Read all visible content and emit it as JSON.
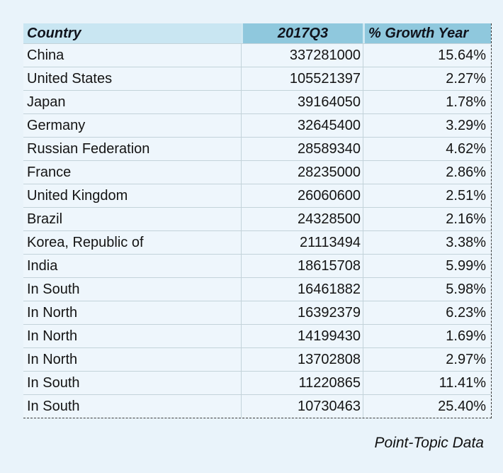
{
  "chart_data": {
    "type": "table",
    "columns": [
      "Country",
      "2017Q3",
      "% Growth Year"
    ],
    "rows": [
      [
        "China",
        "337281000",
        "15.64%"
      ],
      [
        "United States",
        "105521397",
        "2.27%"
      ],
      [
        "Japan",
        "39164050",
        "1.78%"
      ],
      [
        "Germany",
        "32645400",
        "3.29%"
      ],
      [
        "Russian Federation",
        "28589340",
        "4.62%"
      ],
      [
        "France",
        "28235000",
        "2.86%"
      ],
      [
        "United Kingdom",
        "26060600",
        "2.51%"
      ],
      [
        "Brazil",
        "24328500",
        "2.16%"
      ],
      [
        "Korea, Republic of",
        "21113494",
        "3.38%"
      ],
      [
        "India",
        "18615708",
        "5.99%"
      ],
      [
        "In South",
        "16461882",
        "5.98%"
      ],
      [
        "In North",
        "16392379",
        "6.23%"
      ],
      [
        "In North",
        "14199430",
        "1.69%"
      ],
      [
        "In North",
        "13702808",
        "2.97%"
      ],
      [
        "In South",
        "11220865",
        "11.41%"
      ],
      [
        "In South",
        "10730463",
        "25.40%"
      ]
    ],
    "source": "Point-Topic Data",
    "layout": {
      "grid": "horizontal-and-column-separators",
      "selection_border": "dashed-right-and-bottom"
    },
    "colors": {
      "page_background": "#e9f3fa",
      "header_fill_country": "#c9e6f2",
      "header_fill_values": "#8fc8dd",
      "row_fill": "#eef6fc",
      "grid_line": "#c3d3da",
      "selection_dash": "#3a3a3a",
      "text": "#141414"
    }
  }
}
